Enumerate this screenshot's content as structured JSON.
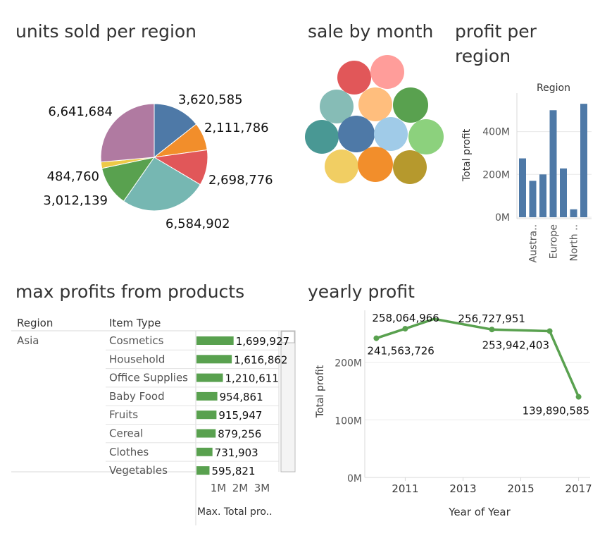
{
  "titles": {
    "units": "units sold per region",
    "sale": "sale by month",
    "profit_line1": "profit per",
    "profit_line2": "region",
    "max": "max profits from products",
    "yearly": "yearly profit"
  },
  "chart_data": [
    {
      "type": "pie",
      "title": "units sold per region",
      "slices": [
        {
          "value": 3620585,
          "label": "3,620,585",
          "color": "#4e79a7"
        },
        {
          "value": 2111786,
          "label": "2,111,786",
          "color": "#f28e2b"
        },
        {
          "value": 2698776,
          "label": "2,698,776",
          "color": "#e15759"
        },
        {
          "value": 6584902,
          "label": "6,584,902",
          "color": "#76b7b2"
        },
        {
          "value": 3012139,
          "label": "3,012,139",
          "color": "#59a14f"
        },
        {
          "value": 484760,
          "label": "484,760",
          "color": "#edc948"
        },
        {
          "value": 6641684,
          "label": "6,641,684",
          "color": "#b07aa1"
        }
      ]
    },
    {
      "type": "bubble",
      "title": "sale by month",
      "colors": [
        "#e15759",
        "#ff9d9a",
        "#86bcb6",
        "#ffbe7d",
        "#59a14f",
        "#499894",
        "#4e79a7",
        "#a0cbe8",
        "#8cd17d",
        "#f1ce63",
        "#f28e2b",
        "#b6992d"
      ]
    },
    {
      "type": "bar",
      "title": "profit per region",
      "header": "Region",
      "ylabel": "Total profit",
      "ylim": [
        0,
        580000000
      ],
      "yticks": [
        {
          "value": 0,
          "label": "0M"
        },
        {
          "value": 200000000,
          "label": "200M"
        },
        {
          "value": 400000000,
          "label": "400M"
        }
      ],
      "values": [
        275000000,
        170000000,
        200000000,
        500000000,
        228000000,
        37000000,
        530000000
      ],
      "category_labels": [
        {
          "index": 1,
          "text": "Austra.."
        },
        {
          "index": 3,
          "text": "Europe"
        },
        {
          "index": 5,
          "text": "North .."
        }
      ],
      "color": "#4e79a7"
    },
    {
      "type": "bar",
      "orientation": "horizontal",
      "title": "max profits from products",
      "headers": {
        "region": "Region",
        "item": "Item Type"
      },
      "region": "Asia",
      "categories": [
        "Cosmetics",
        "Household",
        "Office Supplies",
        "Baby Food",
        "Fruits",
        "Cereal",
        "Clothes",
        "Vegetables"
      ],
      "values": [
        1699927,
        1616862,
        1210611,
        954861,
        915947,
        879256,
        731903,
        595821
      ],
      "value_labels": [
        "1,699,927",
        "1,616,862",
        "1,210,611",
        "954,861",
        "915,947",
        "879,256",
        "731,903",
        "595,821"
      ],
      "xticks": [
        {
          "value": 1000000,
          "label": "1M"
        },
        {
          "value": 2000000,
          "label": "2M"
        },
        {
          "value": 3000000,
          "label": "3M"
        }
      ],
      "xlim": [
        0,
        3600000
      ],
      "xlabel": "Max. Total pro..",
      "color": "#59a14f"
    },
    {
      "type": "line",
      "title": "yearly profit",
      "xlabel": "Year of Year",
      "ylabel": "Total profit",
      "x": [
        2010,
        2011,
        2012,
        2014,
        2016,
        2017
      ],
      "y": [
        241563726,
        258064966,
        275000000,
        256727951,
        253942403,
        139890585
      ],
      "point_labels": [
        "241,563,726",
        "258,064,966",
        "",
        "256,727,951",
        "253,942,403",
        "139,890,585"
      ],
      "xlim": [
        2009.6,
        2017.4
      ],
      "ylim": [
        0,
        290000000
      ],
      "xticks": [
        2011,
        2013,
        2015,
        2017
      ],
      "yticks": [
        {
          "value": 0,
          "label": "0M"
        },
        {
          "value": 100000000,
          "label": "100M"
        },
        {
          "value": 200000000,
          "label": "200M"
        }
      ],
      "color": "#59a14f"
    }
  ]
}
